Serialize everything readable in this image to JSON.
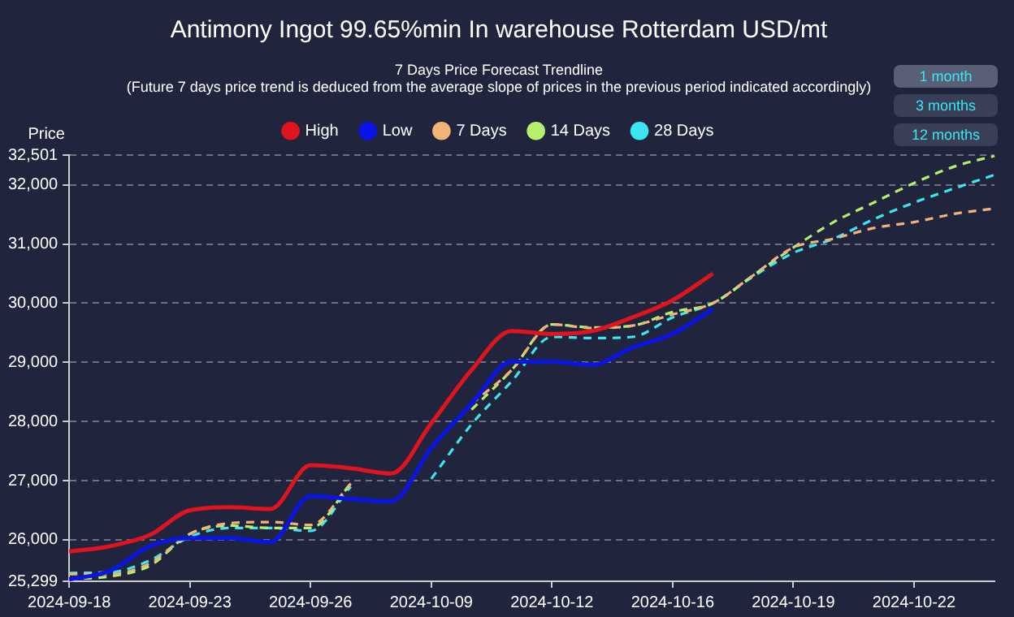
{
  "chart_data": {
    "type": "line",
    "title": "Antimony Ingot 99.65%min In warehouse Rotterdam USD/mt",
    "subtitle": "7 Days Price Forecast Trendline",
    "ylabel": "Price",
    "annotations": [
      "(Future 7 days price trend is deduced from the average slope of prices in the previous period indicated accordingly)",
      "1 month",
      "3 months",
      "12 months"
    ],
    "categories": [
      "2024-09-18",
      null,
      null,
      "2024-09-23",
      null,
      null,
      "2024-09-26",
      null,
      null,
      "2024-10-09",
      null,
      null,
      "2024-10-12",
      null,
      null,
      "2024-10-16",
      null,
      null,
      "2024-10-19",
      null,
      null,
      "2024-10-22",
      null,
      null
    ],
    "series": [
      {
        "name": "High",
        "color": "#e0141e",
        "line_style": "solid",
        "values": [
          25800,
          25890,
          26080,
          26500,
          26550,
          26520,
          27260,
          27210,
          27120,
          27970,
          28870,
          29530,
          29480,
          29530,
          29760,
          30050,
          30500,
          null,
          null,
          null,
          null,
          null,
          null,
          null
        ]
      },
      {
        "name": "Low",
        "color": "#0a14e6",
        "line_style": "solid",
        "values": [
          25330,
          25470,
          25890,
          26030,
          26030,
          25960,
          26740,
          26690,
          26650,
          27550,
          28300,
          29010,
          29010,
          28960,
          29250,
          29480,
          29900,
          null,
          null,
          null,
          null,
          null,
          null,
          null
        ]
      },
      {
        "name": "7 Days",
        "color": "#f0b47a",
        "line_style": "dashed",
        "values": [
          25420,
          25420,
          25600,
          26100,
          26280,
          26300,
          26250,
          26950,
          null,
          null,
          28300,
          28870,
          29640,
          29580,
          29620,
          29810,
          30000,
          30470,
          30940,
          31090,
          31270,
          31370,
          31510,
          31600
        ]
      },
      {
        "name": "14 Days",
        "color": "#b4f06e",
        "line_style": "dashed",
        "values": [
          25340,
          25380,
          25560,
          26100,
          26240,
          26200,
          26200,
          26950,
          null,
          null,
          28200,
          28870,
          29640,
          29590,
          29620,
          29850,
          30000,
          30470,
          30940,
          31370,
          31700,
          32030,
          32310,
          32490
        ]
      },
      {
        "name": "28 Days",
        "color": "#3ce6f0",
        "line_style": "dashed",
        "values": [
          25440,
          25450,
          25650,
          26050,
          26200,
          26200,
          26150,
          26900,
          null,
          27030,
          27950,
          28680,
          29430,
          29410,
          29430,
          29760,
          30000,
          30450,
          30850,
          31090,
          31420,
          31700,
          31940,
          32170
        ]
      }
    ],
    "ylim": [
      25299,
      32501
    ],
    "yticks": [
      {
        "value": 25299,
        "label": "25,299"
      },
      {
        "value": 26000,
        "label": "26,000"
      },
      {
        "value": 27000,
        "label": "27,000"
      },
      {
        "value": 28000,
        "label": "28,000"
      },
      {
        "value": 29000,
        "label": "29,000"
      },
      {
        "value": 30000,
        "label": "30,000"
      },
      {
        "value": 31000,
        "label": "31,000"
      },
      {
        "value": 32000,
        "label": "32,000"
      },
      {
        "value": 32501,
        "label": "32,501"
      }
    ],
    "grid": "y",
    "legend": "top",
    "marker": "none"
  }
}
